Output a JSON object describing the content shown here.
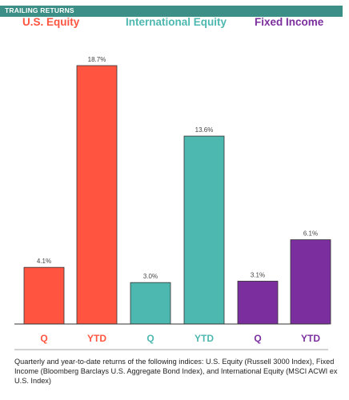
{
  "header": {
    "title": "TRAILING RETURNS"
  },
  "colors": {
    "header_bg": "#3b8f86",
    "us_equity": "#ff5540",
    "international_equity": "#4db8b0",
    "fixed_income": "#7b2f9e"
  },
  "chart_data": {
    "type": "bar",
    "ylim": [
      0,
      20
    ],
    "groups": [
      {
        "title": "U.S. Equity",
        "color": "#ff5540",
        "bars": [
          {
            "label": "Q",
            "value": 4.1,
            "text": "4.1%"
          },
          {
            "label": "YTD",
            "value": 18.7,
            "text": "18.7%"
          }
        ]
      },
      {
        "title": "International Equity",
        "color": "#4db8b0",
        "bars": [
          {
            "label": "Q",
            "value": 3.0,
            "text": "3.0%"
          },
          {
            "label": "YTD",
            "value": 13.6,
            "text": "13.6%"
          }
        ]
      },
      {
        "title": "Fixed Income",
        "color": "#7b2f9e",
        "bars": [
          {
            "label": "Q",
            "value": 3.1,
            "text": "3.1%"
          },
          {
            "label": "YTD",
            "value": 6.1,
            "text": "6.1%"
          }
        ]
      }
    ]
  },
  "footnote": "Quarterly and year-to-date returns of the following indices: U.S. Equity (Russell 3000 Index), Fixed Income (Bloomberg Barclays U.S. Aggregate Bond Index), and International Equity (MSCI ACWI ex U.S. Index)"
}
